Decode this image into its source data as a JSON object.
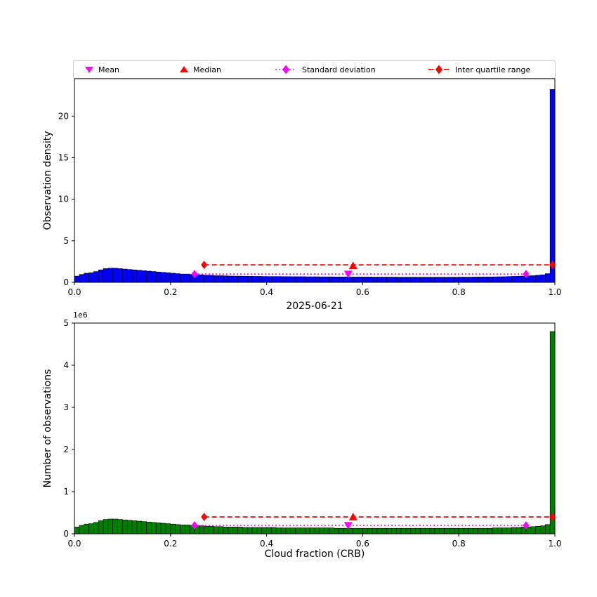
{
  "figure": {
    "title": "2025-06-21",
    "legend": [
      {
        "label": "Mean",
        "marker": "triangle-down",
        "color": "#ff00ff"
      },
      {
        "label": "Median",
        "marker": "triangle-up",
        "color": "#ff0000"
      },
      {
        "label": "Standard deviation",
        "marker": "diamond",
        "color": "#ff00ff",
        "linestyle": "dotted"
      },
      {
        "label": "Inter quartile range",
        "marker": "diamond",
        "color": "#ff0000",
        "linestyle": "dashed"
      }
    ]
  },
  "chart_data": [
    {
      "type": "bar",
      "title": "",
      "xlabel": "",
      "ylabel": "Observation density",
      "xlim": [
        0.0,
        1.0
      ],
      "ylim": [
        0,
        24.5
      ],
      "xticks": [
        0.0,
        0.2,
        0.4,
        0.6,
        0.8,
        1.0
      ],
      "yticks": [
        0,
        5,
        10,
        15,
        20
      ],
      "bin_width": 0.01,
      "bar_color": "#0000ff",
      "grid": false,
      "values": [
        0.75,
        0.95,
        1.1,
        1.15,
        1.3,
        1.5,
        1.65,
        1.7,
        1.7,
        1.65,
        1.6,
        1.55,
        1.5,
        1.45,
        1.4,
        1.35,
        1.3,
        1.25,
        1.2,
        1.15,
        1.1,
        1.05,
        1.0,
        1.0,
        0.95,
        0.9,
        0.9,
        0.85,
        0.85,
        0.8,
        0.8,
        0.78,
        0.76,
        0.75,
        0.75,
        0.74,
        0.73,
        0.72,
        0.72,
        0.71,
        0.7,
        0.7,
        0.7,
        0.69,
        0.69,
        0.68,
        0.68,
        0.68,
        0.67,
        0.67,
        0.67,
        0.66,
        0.66,
        0.66,
        0.65,
        0.65,
        0.65,
        0.65,
        0.64,
        0.64,
        0.64,
        0.64,
        0.63,
        0.63,
        0.63,
        0.63,
        0.63,
        0.62,
        0.62,
        0.62,
        0.62,
        0.62,
        0.62,
        0.62,
        0.62,
        0.62,
        0.62,
        0.62,
        0.62,
        0.62,
        0.63,
        0.63,
        0.63,
        0.64,
        0.64,
        0.65,
        0.65,
        0.66,
        0.67,
        0.68,
        0.7,
        0.72,
        0.74,
        0.76,
        0.78,
        0.8,
        0.85,
        0.9,
        1.05,
        23.2
      ],
      "annotations": {
        "mean": {
          "x": 0.57,
          "y": 1.0,
          "color": "#ff00ff"
        },
        "median": {
          "x": 0.58,
          "y": 2.0,
          "color": "#ff0000"
        },
        "std_range": {
          "x1": 0.25,
          "x2": 0.94,
          "y": 1.0,
          "color": "#ff00ff"
        },
        "iqr_range": {
          "x1": 0.27,
          "x2": 0.995,
          "y": 2.1,
          "color": "#ff0000"
        }
      }
    },
    {
      "type": "bar",
      "title": "2025-06-21",
      "xlabel": "Cloud fraction (CRB)",
      "ylabel": "Number of observations",
      "y_offset_label": "1e6",
      "xlim": [
        0.0,
        1.0
      ],
      "ylim": [
        0,
        5
      ],
      "xticks": [
        0.0,
        0.2,
        0.4,
        0.6,
        0.8,
        1.0
      ],
      "yticks": [
        0,
        1,
        2,
        3,
        4,
        5
      ],
      "bin_width": 0.01,
      "bar_color": "#008000",
      "grid": false,
      "units": "1e6 observations",
      "values": [
        0.16,
        0.2,
        0.23,
        0.24,
        0.27,
        0.31,
        0.34,
        0.35,
        0.35,
        0.34,
        0.33,
        0.32,
        0.31,
        0.3,
        0.29,
        0.28,
        0.27,
        0.26,
        0.25,
        0.24,
        0.23,
        0.22,
        0.21,
        0.21,
        0.2,
        0.19,
        0.19,
        0.18,
        0.18,
        0.17,
        0.17,
        0.16,
        0.16,
        0.16,
        0.16,
        0.15,
        0.15,
        0.15,
        0.15,
        0.15,
        0.15,
        0.15,
        0.14,
        0.14,
        0.14,
        0.14,
        0.14,
        0.14,
        0.14,
        0.14,
        0.14,
        0.14,
        0.14,
        0.14,
        0.13,
        0.13,
        0.13,
        0.13,
        0.13,
        0.13,
        0.13,
        0.13,
        0.13,
        0.13,
        0.13,
        0.13,
        0.13,
        0.13,
        0.13,
        0.13,
        0.13,
        0.13,
        0.13,
        0.13,
        0.13,
        0.13,
        0.13,
        0.13,
        0.13,
        0.13,
        0.13,
        0.13,
        0.13,
        0.13,
        0.13,
        0.13,
        0.13,
        0.14,
        0.14,
        0.14,
        0.14,
        0.15,
        0.15,
        0.16,
        0.16,
        0.17,
        0.18,
        0.19,
        0.22,
        4.8
      ],
      "annotations": {
        "mean": {
          "x": 0.57,
          "y": 0.2,
          "color": "#ff00ff"
        },
        "median": {
          "x": 0.58,
          "y": 0.4,
          "color": "#ff0000"
        },
        "std_range": {
          "x1": 0.25,
          "x2": 0.94,
          "y": 0.2,
          "color": "#ff00ff"
        },
        "iqr_range": {
          "x1": 0.27,
          "x2": 0.995,
          "y": 0.4,
          "color": "#ff0000"
        }
      }
    }
  ]
}
